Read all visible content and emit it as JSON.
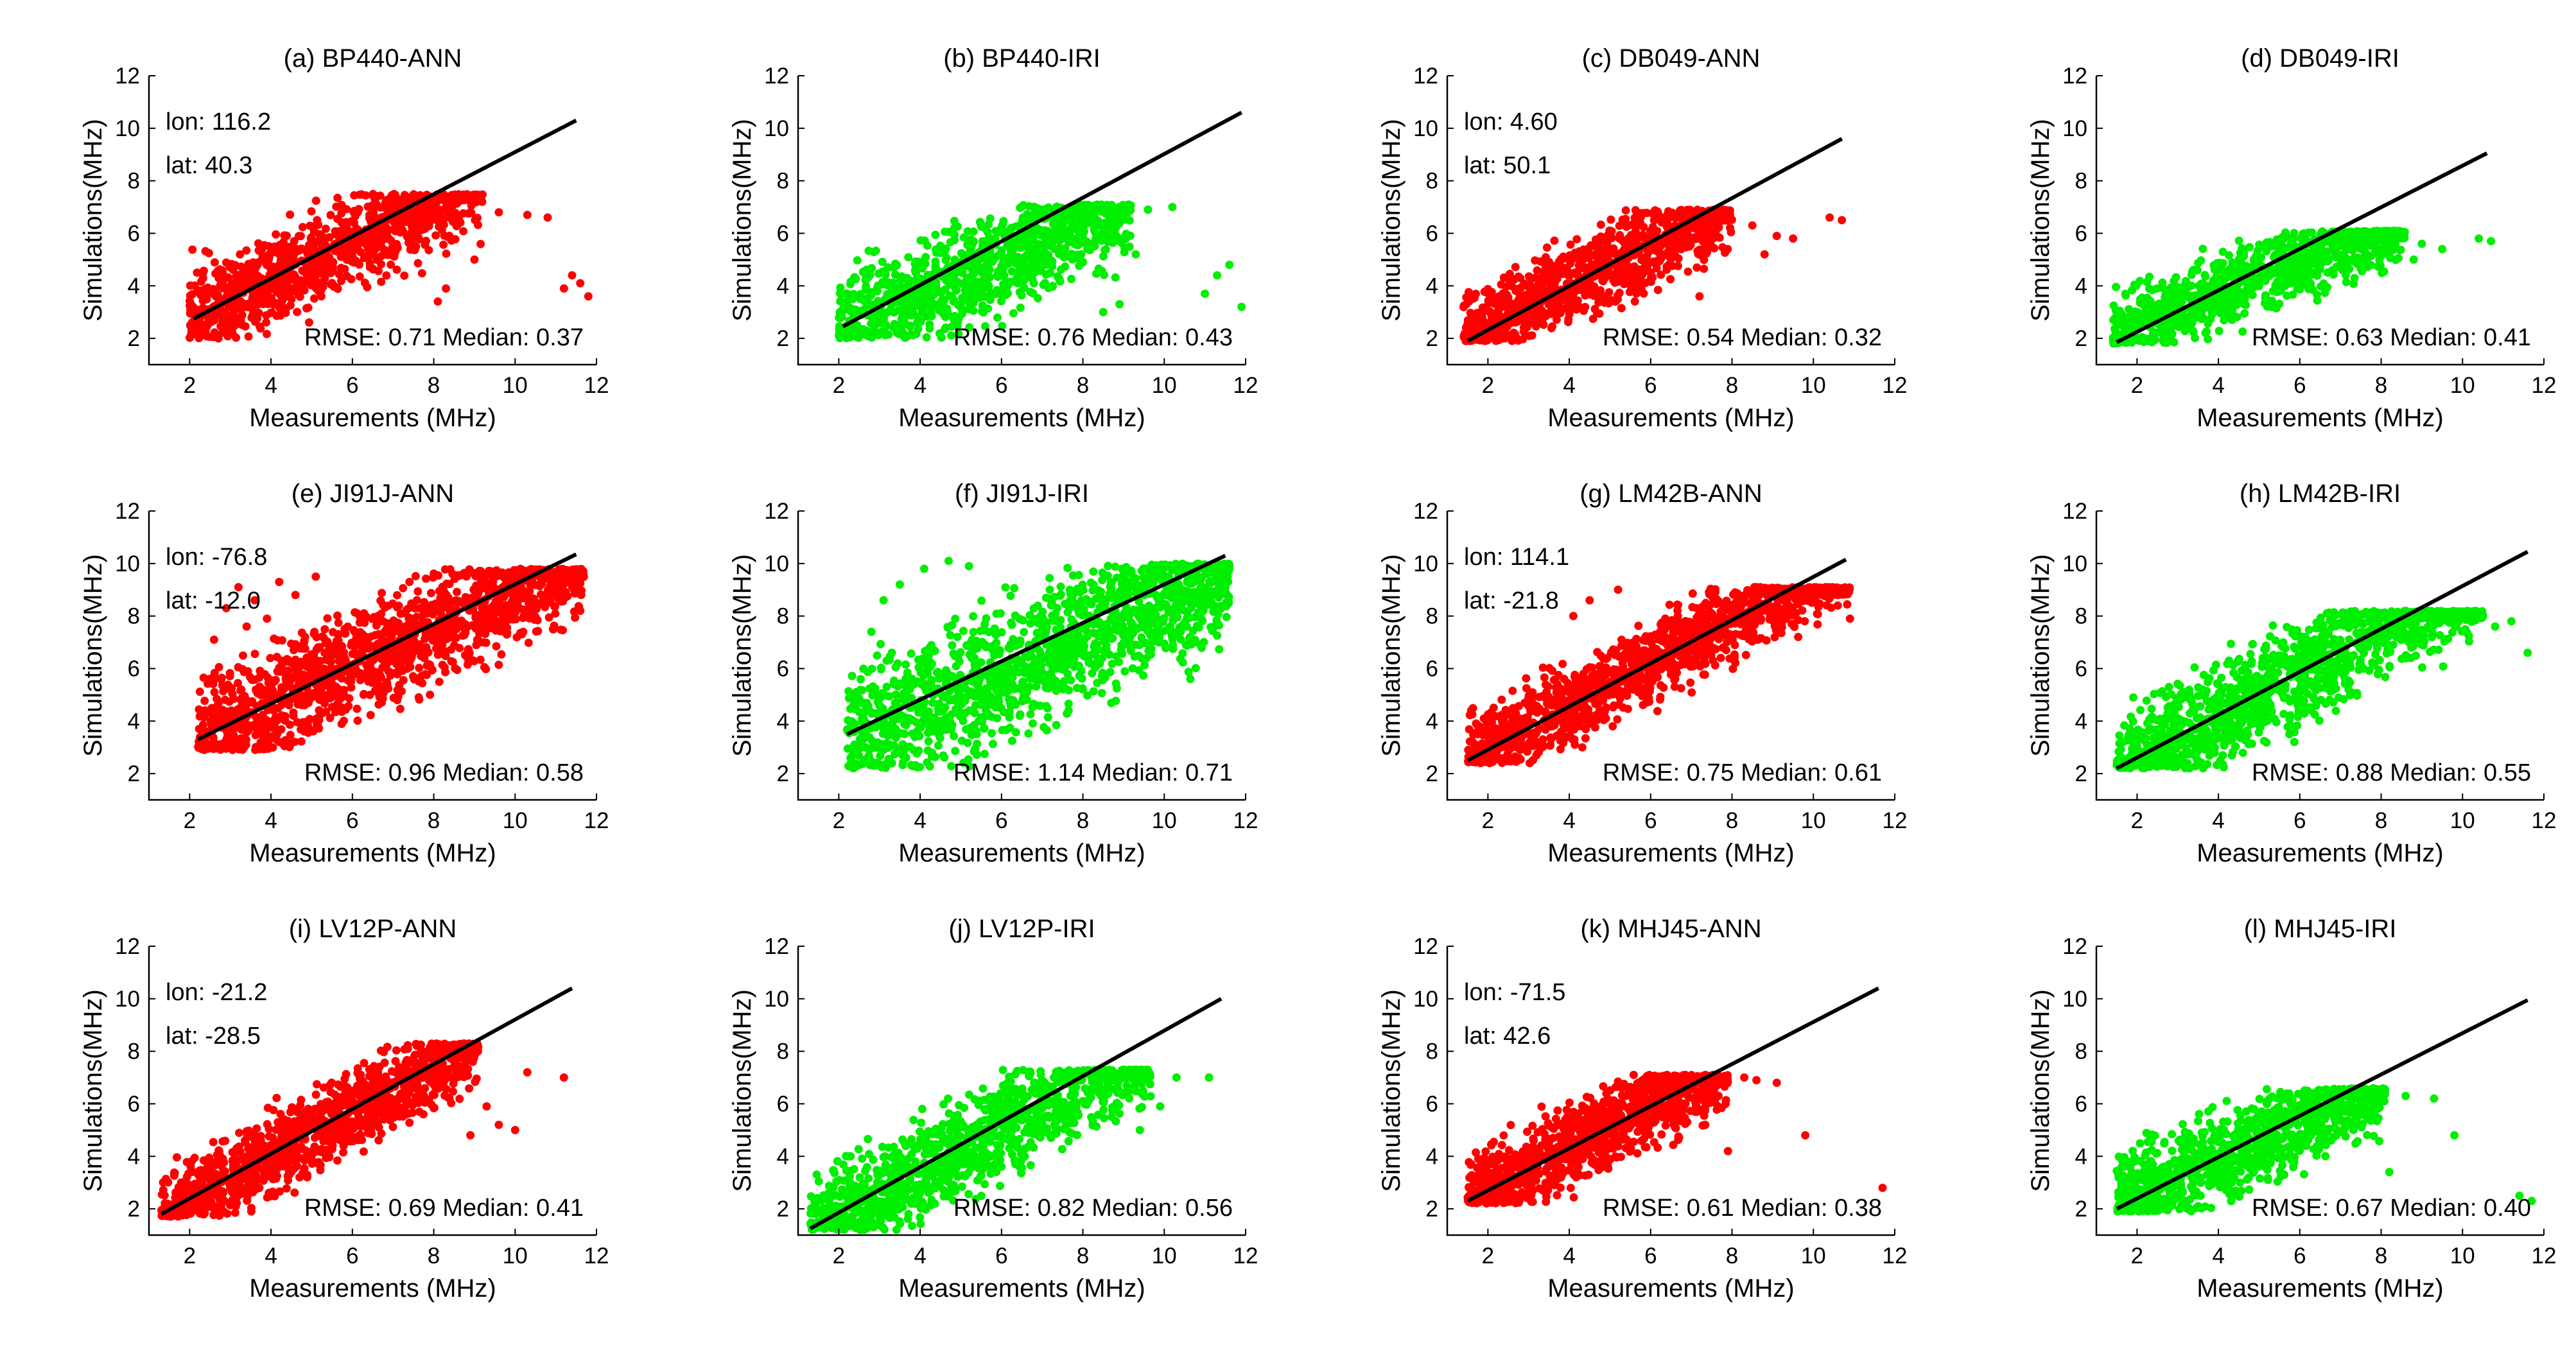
{
  "figure": {
    "description_free": true,
    "colors": {
      "ann": "#ff0000",
      "iri": "#00ee00",
      "fit": "#000000",
      "axis": "#000000"
    }
  },
  "chart_data": [
    {
      "type": "scatter",
      "title": "(a) BP440-ANN",
      "method": "ANN",
      "xlabel": "Measurements (MHz)",
      "ylabel": "Simulations(MHz)",
      "xlim": [
        1,
        12
      ],
      "ylim": [
        1,
        12
      ],
      "xticks": [
        2,
        4,
        6,
        8,
        10,
        12
      ],
      "yticks": [
        2,
        4,
        6,
        8,
        10,
        12
      ],
      "fit_line": {
        "x": [
          2.1,
          11.5
        ],
        "y": [
          2.75,
          10.3
        ]
      },
      "rmse_label": "RMSE: 0.71",
      "median_label": "Median: 0.37",
      "lon_label": "lon: 116.2",
      "lat_label": "lat: 40.3",
      "cloud": {
        "xmin": 2.0,
        "xmax": 9.2,
        "slope": 0.7,
        "intercept": 1.45,
        "spread": 0.85,
        "ymin": 2.0,
        "ymax": 7.5,
        "count": 1100
      },
      "outliers": [
        [
          9.6,
          6.8
        ],
        [
          10.3,
          6.7
        ],
        [
          10.8,
          6.6
        ],
        [
          11.4,
          4.4
        ],
        [
          11.6,
          4.1
        ],
        [
          11.8,
          3.6
        ],
        [
          11.2,
          3.9
        ],
        [
          8.1,
          3.4
        ],
        [
          8.3,
          3.9
        ],
        [
          9.0,
          5.0
        ]
      ]
    },
    {
      "type": "scatter",
      "title": "(b) BP440-IRI",
      "method": "IRI",
      "xlabel": "Measurements (MHz)",
      "ylabel": "Simulations(MHz)",
      "xlim": [
        1,
        12
      ],
      "ylim": [
        1,
        12
      ],
      "xticks": [
        2,
        4,
        6,
        8,
        10,
        12
      ],
      "yticks": [
        2,
        4,
        6,
        8,
        10,
        12
      ],
      "fit_line": {
        "x": [
          2.1,
          11.9
        ],
        "y": [
          2.45,
          10.6
        ]
      },
      "rmse_label": "RMSE: 0.76",
      "median_label": "Median: 0.43",
      "lon_label": "",
      "lat_label": "",
      "cloud": {
        "xmin": 2.0,
        "xmax": 9.2,
        "slope": 0.65,
        "intercept": 1.1,
        "spread": 0.9,
        "ymin": 2.0,
        "ymax": 7.1,
        "count": 1100
      },
      "outliers": [
        [
          9.6,
          6.9
        ],
        [
          10.2,
          7.0
        ],
        [
          11.3,
          4.4
        ],
        [
          11.6,
          4.8
        ],
        [
          11.9,
          3.2
        ],
        [
          11.0,
          3.7
        ],
        [
          8.5,
          3.0
        ],
        [
          8.9,
          3.3
        ],
        [
          9.3,
          5.2
        ]
      ]
    },
    {
      "type": "scatter",
      "title": "(c) DB049-ANN",
      "method": "ANN",
      "xlabel": "Measurements (MHz)",
      "ylabel": "Simulations(MHz)",
      "xlim": [
        1,
        12
      ],
      "ylim": [
        1,
        12
      ],
      "xticks": [
        2,
        4,
        6,
        8,
        10,
        12
      ],
      "yticks": [
        2,
        4,
        6,
        8,
        10,
        12
      ],
      "fit_line": {
        "x": [
          1.5,
          10.7
        ],
        "y": [
          1.9,
          9.6
        ]
      },
      "rmse_label": "RMSE: 0.54",
      "median_label": "Median: 0.32",
      "lon_label": "lon: 4.60",
      "lat_label": "lat: 50.1",
      "cloud": {
        "xmin": 1.4,
        "xmax": 8.0,
        "slope": 0.75,
        "intercept": 1.0,
        "spread": 0.75,
        "ymin": 1.9,
        "ymax": 6.9,
        "count": 1000
      },
      "outliers": [
        [
          8.5,
          6.3
        ],
        [
          9.1,
          5.9
        ],
        [
          10.4,
          6.6
        ],
        [
          10.7,
          6.5
        ],
        [
          9.5,
          5.8
        ],
        [
          8.8,
          5.2
        ],
        [
          7.2,
          3.6
        ]
      ]
    },
    {
      "type": "scatter",
      "title": "(d) DB049-IRI",
      "method": "IRI",
      "xlabel": "Measurements (MHz)",
      "ylabel": "Simulations(MHz)",
      "xlim": [
        1,
        12
      ],
      "ylim": [
        1,
        12
      ],
      "xticks": [
        2,
        4,
        6,
        8,
        10,
        12
      ],
      "yticks": [
        2,
        4,
        6,
        8,
        10,
        12
      ],
      "fit_line": {
        "x": [
          1.5,
          10.6
        ],
        "y": [
          1.85,
          9.05
        ]
      },
      "rmse_label": "RMSE: 0.63",
      "median_label": "Median: 0.41",
      "lon_label": "",
      "lat_label": "",
      "cloud": {
        "xmin": 1.4,
        "xmax": 8.6,
        "slope": 0.6,
        "intercept": 1.3,
        "spread": 0.7,
        "ymin": 1.8,
        "ymax": 6.1,
        "count": 1000
      },
      "outliers": [
        [
          9.0,
          5.6
        ],
        [
          9.5,
          5.4
        ],
        [
          10.4,
          5.8
        ],
        [
          10.7,
          5.7
        ],
        [
          8.8,
          5.0
        ]
      ]
    },
    {
      "type": "scatter",
      "title": "(e) JI91J-ANN",
      "method": "ANN",
      "xlabel": "Measurements (MHz)",
      "ylabel": "Simulations(MHz)",
      "xlim": [
        1,
        12
      ],
      "ylim": [
        1,
        12
      ],
      "xticks": [
        2,
        4,
        6,
        8,
        10,
        12
      ],
      "yticks": [
        2,
        4,
        6,
        8,
        10,
        12
      ],
      "fit_line": {
        "x": [
          2.2,
          11.5
        ],
        "y": [
          3.3,
          10.35
        ]
      },
      "rmse_label": "RMSE: 0.96",
      "median_label": "Median: 0.58",
      "lon_label": "lon: -76.8",
      "lat_label": "lat: -12.0",
      "cloud": {
        "xmin": 2.2,
        "xmax": 11.7,
        "slope": 0.72,
        "intercept": 1.8,
        "spread": 1.0,
        "ymin": 2.9,
        "ymax": 9.8,
        "count": 1500
      },
      "outliers": [
        [
          3.2,
          9.1
        ],
        [
          3.6,
          8.6
        ],
        [
          2.9,
          8.3
        ],
        [
          3.9,
          7.9
        ],
        [
          4.2,
          9.3
        ],
        [
          2.6,
          7.1
        ],
        [
          3.4,
          7.6
        ],
        [
          4.6,
          8.8
        ],
        [
          5.1,
          9.5
        ],
        [
          11.6,
          8.2
        ]
      ]
    },
    {
      "type": "scatter",
      "title": "(f) JI91J-IRI",
      "method": "IRI",
      "xlabel": "Measurements (MHz)",
      "ylabel": "Simulations(MHz)",
      "xlim": [
        1,
        12
      ],
      "ylim": [
        1,
        12
      ],
      "xticks": [
        2,
        4,
        6,
        8,
        10,
        12
      ],
      "yticks": [
        2,
        4,
        6,
        8,
        10,
        12
      ],
      "fit_line": {
        "x": [
          2.2,
          11.5
        ],
        "y": [
          3.5,
          10.3
        ]
      },
      "rmse_label": "RMSE: 1.14",
      "median_label": "Median: 0.71",
      "lon_label": "",
      "lat_label": "",
      "cloud": {
        "xmin": 2.2,
        "xmax": 11.6,
        "slope": 0.7,
        "intercept": 1.6,
        "spread": 1.2,
        "ymin": 2.2,
        "ymax": 10.0,
        "count": 1500
      },
      "outliers": [
        [
          3.1,
          8.6
        ],
        [
          3.5,
          9.2
        ],
        [
          4.1,
          9.8
        ],
        [
          4.7,
          10.1
        ],
        [
          2.8,
          7.4
        ],
        [
          5.2,
          9.9
        ]
      ]
    },
    {
      "type": "scatter",
      "title": "(g) LM42B-ANN",
      "method": "ANN",
      "xlabel": "Measurements (MHz)",
      "ylabel": "Simulations(MHz)",
      "xlim": [
        1,
        12
      ],
      "ylim": [
        1,
        12
      ],
      "xticks": [
        2,
        4,
        6,
        8,
        10,
        12
      ],
      "yticks": [
        2,
        4,
        6,
        8,
        10,
        12
      ],
      "fit_line": {
        "x": [
          1.5,
          10.8
        ],
        "y": [
          2.5,
          10.15
        ]
      },
      "rmse_label": "RMSE: 0.75",
      "median_label": "Median: 0.61",
      "lon_label": "lon: 114.1",
      "lat_label": "lat: -21.8",
      "cloud": {
        "xmin": 1.5,
        "xmax": 10.9,
        "slope": 0.82,
        "intercept": 1.3,
        "spread": 0.75,
        "ymin": 2.4,
        "ymax": 9.1,
        "count": 1400
      },
      "outliers": [
        [
          4.1,
          8.0
        ],
        [
          4.5,
          8.6
        ],
        [
          5.2,
          9.0
        ],
        [
          10.6,
          8.4
        ],
        [
          10.9,
          7.9
        ]
      ]
    },
    {
      "type": "scatter",
      "title": "(h) LM42B-IRI",
      "method": "IRI",
      "xlabel": "Measurements (MHz)",
      "ylabel": "Simulations(MHz)",
      "xlim": [
        1,
        12
      ],
      "ylim": [
        1,
        12
      ],
      "xticks": [
        2,
        4,
        6,
        8,
        10,
        12
      ],
      "yticks": [
        2,
        4,
        6,
        8,
        10,
        12
      ],
      "fit_line": {
        "x": [
          1.5,
          11.6
        ],
        "y": [
          2.2,
          10.45
        ]
      },
      "rmse_label": "RMSE: 0.88",
      "median_label": "Median: 0.55",
      "lon_label": "",
      "lat_label": "",
      "cloud": {
        "xmin": 1.5,
        "xmax": 10.5,
        "slope": 0.8,
        "intercept": 1.0,
        "spread": 0.9,
        "ymin": 2.2,
        "ymax": 8.2,
        "count": 1400
      },
      "outliers": [
        [
          10.8,
          7.6
        ],
        [
          11.2,
          7.8
        ],
        [
          11.6,
          6.6
        ],
        [
          9.6,
          8.1
        ]
      ]
    },
    {
      "type": "scatter",
      "title": "(i) LV12P-ANN",
      "method": "ANN",
      "xlabel": "Measurements (MHz)",
      "ylabel": "Simulations(MHz)",
      "xlim": [
        1,
        12
      ],
      "ylim": [
        1,
        12
      ],
      "xticks": [
        2,
        4,
        6,
        8,
        10,
        12
      ],
      "yticks": [
        2,
        4,
        6,
        8,
        10,
        12
      ],
      "fit_line": {
        "x": [
          1.3,
          11.4
        ],
        "y": [
          1.8,
          10.4
        ]
      },
      "rmse_label": "RMSE: 0.69",
      "median_label": "Median: 0.41",
      "lon_label": "lon: -21.2",
      "lat_label": "lat: -28.5",
      "cloud": {
        "xmin": 1.3,
        "xmax": 9.1,
        "slope": 0.84,
        "intercept": 0.7,
        "spread": 0.75,
        "ymin": 1.7,
        "ymax": 8.3,
        "count": 1200
      },
      "outliers": [
        [
          9.6,
          5.2
        ],
        [
          10.0,
          5.0
        ],
        [
          10.3,
          7.2
        ],
        [
          11.2,
          7.0
        ],
        [
          9.3,
          5.9
        ],
        [
          8.9,
          4.8
        ]
      ]
    },
    {
      "type": "scatter",
      "title": "(j) LV12P-IRI",
      "method": "IRI",
      "xlabel": "Measurements (MHz)",
      "ylabel": "Simulations(MHz)",
      "xlim": [
        1,
        12
      ],
      "ylim": [
        1,
        12
      ],
      "xticks": [
        2,
        4,
        6,
        8,
        10,
        12
      ],
      "yticks": [
        2,
        4,
        6,
        8,
        10,
        12
      ],
      "fit_line": {
        "x": [
          1.3,
          11.4
        ],
        "y": [
          1.25,
          10.0
        ]
      },
      "rmse_label": "RMSE: 0.82",
      "median_label": "Median: 0.56",
      "lon_label": "",
      "lat_label": "",
      "cloud": {
        "xmin": 1.3,
        "xmax": 9.7,
        "slope": 0.8,
        "intercept": 0.3,
        "spread": 0.9,
        "ymin": 1.2,
        "ymax": 7.3,
        "count": 1200
      },
      "outliers": [
        [
          10.3,
          7.0
        ],
        [
          11.1,
          7.0
        ],
        [
          9.9,
          5.9
        ],
        [
          9.4,
          5.0
        ]
      ]
    },
    {
      "type": "scatter",
      "title": "(k) MHJ45-ANN",
      "method": "ANN",
      "xlabel": "Measurements (MHz)",
      "ylabel": "Simulations(MHz)",
      "xlim": [
        1,
        12
      ],
      "ylim": [
        1,
        12
      ],
      "xticks": [
        2,
        4,
        6,
        8,
        10,
        12
      ],
      "yticks": [
        2,
        4,
        6,
        8,
        10,
        12
      ],
      "fit_line": {
        "x": [
          1.5,
          11.6
        ],
        "y": [
          2.3,
          10.4
        ]
      },
      "rmse_label": "RMSE: 0.61",
      "median_label": "Median: 0.38",
      "lon_label": "lon: -71.5",
      "lat_label": "lat: 42.6",
      "cloud": {
        "xmin": 1.5,
        "xmax": 7.9,
        "slope": 0.78,
        "intercept": 1.25,
        "spread": 0.75,
        "ymin": 2.2,
        "ymax": 7.1,
        "count": 1100
      },
      "outliers": [
        [
          8.3,
          7.0
        ],
        [
          8.6,
          6.9
        ],
        [
          9.1,
          6.8
        ],
        [
          9.8,
          4.8
        ],
        [
          11.7,
          2.8
        ],
        [
          7.9,
          4.2
        ]
      ]
    },
    {
      "type": "scatter",
      "title": "(l) MHJ45-IRI",
      "method": "IRI",
      "xlabel": "Measurements (MHz)",
      "ylabel": "Simulations(MHz)",
      "xlim": [
        1,
        12
      ],
      "ylim": [
        1,
        12
      ],
      "xticks": [
        2,
        4,
        6,
        8,
        10,
        12
      ],
      "yticks": [
        2,
        4,
        6,
        8,
        10,
        12
      ],
      "fit_line": {
        "x": [
          1.5,
          11.6
        ],
        "y": [
          2.0,
          9.95
        ]
      },
      "rmse_label": "RMSE: 0.67",
      "median_label": "Median: 0.40",
      "lon_label": "",
      "lat_label": "",
      "cloud": {
        "xmin": 1.5,
        "xmax": 8.1,
        "slope": 0.72,
        "intercept": 1.0,
        "spread": 0.85,
        "ymin": 1.9,
        "ymax": 6.6,
        "count": 1100
      },
      "outliers": [
        [
          8.6,
          6.3
        ],
        [
          9.3,
          6.2
        ],
        [
          9.8,
          4.8
        ],
        [
          11.4,
          2.5
        ],
        [
          11.7,
          2.3
        ],
        [
          8.2,
          3.4
        ]
      ]
    }
  ]
}
